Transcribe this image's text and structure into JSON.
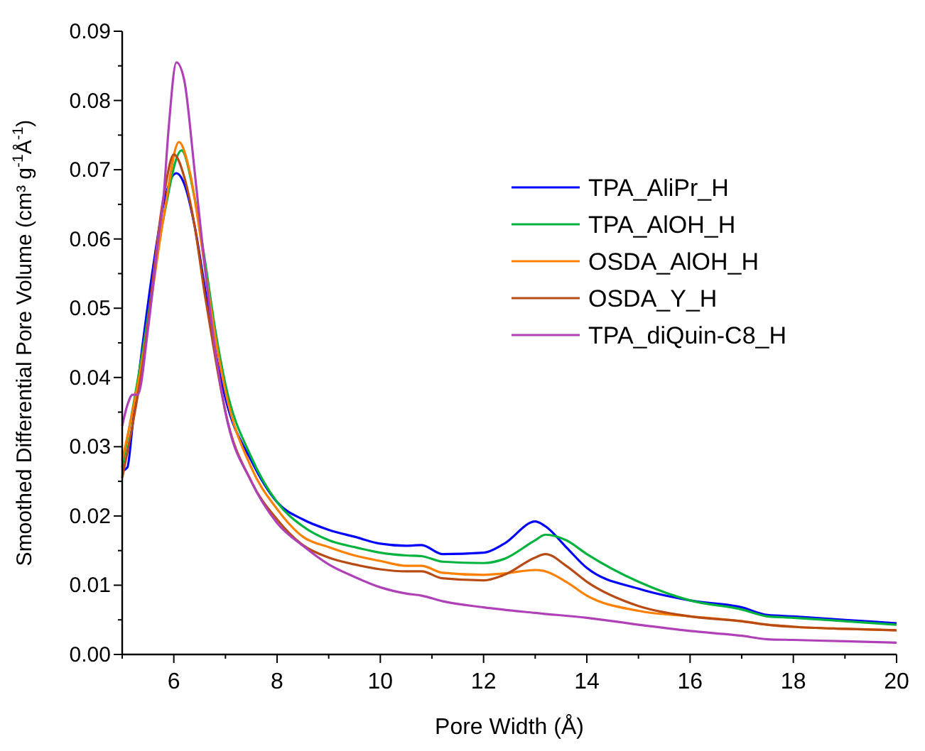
{
  "chart_data": {
    "type": "line",
    "xlabel": "Pore Width (Å)",
    "ylabel": "Smoothed Differential Pore Volume (cm³ g$^{-1}$Å$^{-1}$)",
    "xlim": [
      5,
      20
    ],
    "xticks": [
      {
        "value": 5,
        "label": null
      },
      6,
      {
        "value": 7,
        "label": null
      },
      8,
      {
        "value": 9,
        "label": null
      },
      10,
      {
        "value": 11,
        "label": null
      },
      12,
      {
        "value": 13,
        "label": null
      },
      14,
      {
        "value": 15,
        "label": null
      },
      16,
      {
        "value": 17,
        "label": null
      },
      18,
      {
        "value": 19,
        "label": null
      },
      20
    ],
    "ylim": [
      0,
      0.09
    ],
    "yticks": [
      {
        "value": 0,
        "label": "0.00"
      },
      {
        "value": 0.005,
        "label": null
      },
      0.01,
      {
        "value": 0.015,
        "label": null
      },
      0.02,
      {
        "value": 0.025,
        "label": null
      },
      0.03,
      {
        "value": 0.035,
        "label": null
      },
      0.04,
      {
        "value": 0.045,
        "label": null
      },
      0.05,
      {
        "value": 0.055,
        "label": null
      },
      0.06,
      {
        "value": 0.065,
        "label": null
      },
      0.07,
      {
        "value": 0.075,
        "label": null
      },
      0.08,
      {
        "value": 0.085,
        "label": null
      },
      0.09
    ],
    "grid": false,
    "legend": "top right",
    "line_style": "solid",
    "marker": "none",
    "series": [
      {
        "name": "TPA_AliPr_H",
        "color": "#0000ff",
        "x": [
          5,
          5.1,
          5.2,
          5.4,
          5.6,
          5.8,
          6.05,
          6.2,
          6.4,
          6.6,
          6.8,
          7,
          7.5,
          8,
          8.5,
          9,
          9.5,
          10,
          10.5,
          10.8,
          11.2,
          12,
          12.4,
          13,
          13.2,
          13.6,
          14,
          15,
          16,
          17,
          17.5,
          18,
          19,
          20
        ],
        "values": [
          0.0265,
          0.027,
          0.033,
          0.045,
          0.056,
          0.065,
          0.0695,
          0.068,
          0.062,
          0.053,
          0.044,
          0.037,
          0.028,
          0.022,
          0.0195,
          0.018,
          0.017,
          0.016,
          0.0157,
          0.0158,
          0.0145,
          0.0147,
          0.016,
          0.0192,
          0.0185,
          0.0155,
          0.0125,
          0.0095,
          0.0078,
          0.0068,
          0.0057,
          0.0055,
          0.005,
          0.0045
        ]
      },
      {
        "name": "TPA_AlOH_H",
        "color": "#00b33c",
        "x": [
          5,
          5.4,
          5.8,
          6.15,
          6.4,
          6.6,
          6.8,
          7,
          7.5,
          8,
          8.5,
          9,
          9.5,
          10,
          10.5,
          10.8,
          11.2,
          12,
          12.4,
          13,
          13.2,
          13.6,
          14,
          15,
          16,
          17,
          17.5,
          18,
          19,
          20
        ],
        "values": [
          0.027,
          0.044,
          0.063,
          0.0728,
          0.066,
          0.057,
          0.047,
          0.039,
          0.0285,
          0.022,
          0.0185,
          0.0165,
          0.0155,
          0.0147,
          0.0143,
          0.0142,
          0.0134,
          0.0132,
          0.0138,
          0.0165,
          0.0173,
          0.0165,
          0.0145,
          0.0105,
          0.0078,
          0.0065,
          0.0055,
          0.0053,
          0.0048,
          0.0043
        ]
      },
      {
        "name": "OSDA_AlOH_H",
        "color": "#ff8000",
        "x": [
          5,
          5.4,
          5.8,
          6.1,
          6.3,
          6.6,
          6.8,
          7,
          7.5,
          8,
          8.5,
          9,
          9.5,
          10,
          10.5,
          10.8,
          11.2,
          12,
          12.4,
          13,
          13.2,
          13.6,
          14,
          15,
          16,
          17,
          17.5,
          18,
          19,
          20
        ],
        "values": [
          0.028,
          0.043,
          0.063,
          0.074,
          0.07,
          0.056,
          0.046,
          0.038,
          0.027,
          0.021,
          0.017,
          0.0155,
          0.0143,
          0.0135,
          0.0128,
          0.0128,
          0.0118,
          0.0115,
          0.0117,
          0.0122,
          0.012,
          0.0105,
          0.0085,
          0.0063,
          0.0055,
          0.0048,
          0.0043,
          0.004,
          0.0037,
          0.0035
        ]
      },
      {
        "name": "OSDA_Y_H",
        "color": "#b84a14",
        "x": [
          5,
          5.4,
          5.8,
          6,
          6.2,
          6.4,
          6.6,
          6.8,
          7,
          7.5,
          8,
          8.5,
          9,
          9.5,
          10,
          10.5,
          10.8,
          11.2,
          12,
          12.4,
          13,
          13.2,
          13.6,
          14,
          15,
          16,
          17,
          17.5,
          18,
          19,
          20
        ],
        "values": [
          0.0255,
          0.042,
          0.066,
          0.0722,
          0.069,
          0.062,
          0.052,
          0.043,
          0.035,
          0.025,
          0.0195,
          0.0158,
          0.014,
          0.013,
          0.0123,
          0.012,
          0.012,
          0.011,
          0.0107,
          0.0115,
          0.014,
          0.0145,
          0.0128,
          0.0105,
          0.007,
          0.0055,
          0.0048,
          0.0043,
          0.004,
          0.0037,
          0.0035
        ]
      },
      {
        "name": "TPA_diQuin-C8_H",
        "color": "#b040b8",
        "x": [
          5,
          5.1,
          5.2,
          5.3,
          5.5,
          5.7,
          5.8,
          5.9,
          6.05,
          6.2,
          6.4,
          6.6,
          6.8,
          7,
          7.5,
          8,
          8.5,
          9,
          9.5,
          10,
          10.5,
          10.8,
          11.2,
          12,
          13,
          14,
          15,
          16,
          17,
          17.5,
          18,
          19,
          20
        ],
        "values": [
          0.033,
          0.036,
          0.0375,
          0.0375,
          0.047,
          0.06,
          0.066,
          0.076,
          0.0855,
          0.083,
          0.07,
          0.056,
          0.044,
          0.035,
          0.025,
          0.019,
          0.0157,
          0.013,
          0.0112,
          0.0097,
          0.0088,
          0.0085,
          0.0077,
          0.0068,
          0.006,
          0.0053,
          0.0043,
          0.0034,
          0.0027,
          0.0022,
          0.0021,
          0.0019,
          0.0017
        ]
      }
    ]
  }
}
